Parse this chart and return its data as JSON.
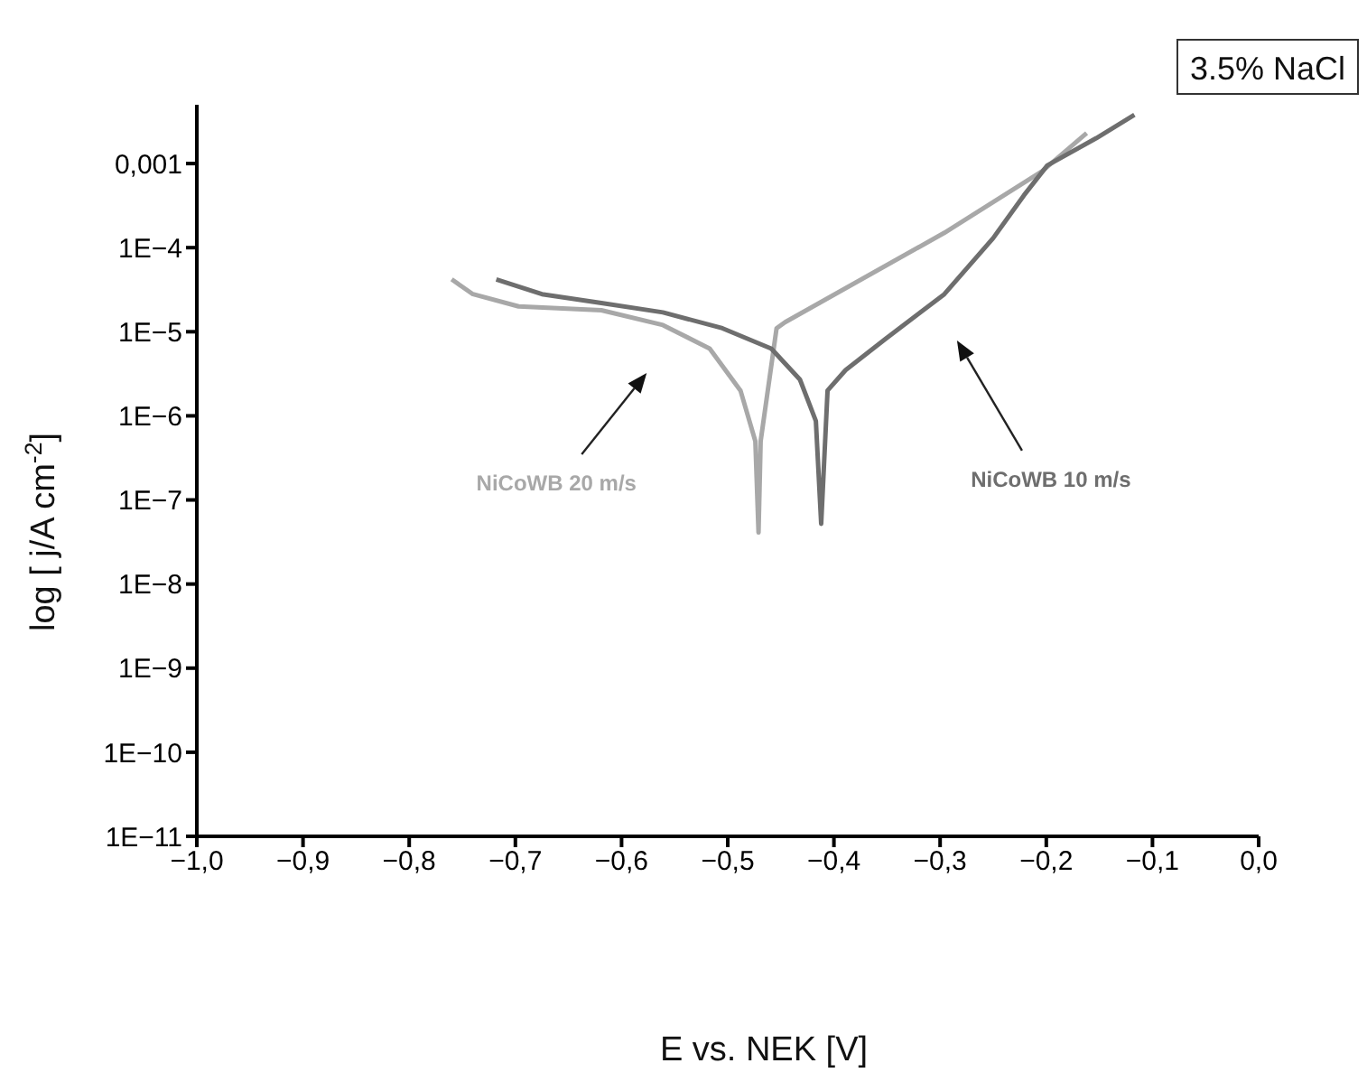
{
  "chart_data": {
    "type": "line",
    "xlabel": "E vs. NEK [V]",
    "ylabel": "log  [ j/A cm$^{-2}$]",
    "log": "y",
    "legend": false,
    "grid": false,
    "marker": "none",
    "line_style": "solid",
    "xlim": [
      -1.0,
      0.0
    ],
    "xticks": [
      {
        "value": -1.0,
        "label": "−1,0"
      },
      {
        "value": -0.9,
        "label": "−0,9"
      },
      {
        "value": -0.8,
        "label": "−0,8"
      },
      {
        "value": -0.7,
        "label": "−0,7"
      },
      {
        "value": -0.6,
        "label": "−0,6"
      },
      {
        "value": -0.5,
        "label": "−0,5"
      },
      {
        "value": -0.4,
        "label": "−0,4"
      },
      {
        "value": -0.3,
        "label": "−0,3"
      },
      {
        "value": -0.2,
        "label": "−0,2"
      },
      {
        "value": -0.1,
        "label": "−0,1"
      },
      {
        "value": 0.0,
        "label": "0,0"
      }
    ],
    "ylim": [
      1e-11,
      0.005
    ],
    "yticks": [
      {
        "value": 1e-11,
        "label": "1E−11"
      },
      {
        "value": 1e-10,
        "label": "1E−10"
      },
      {
        "value": 1e-09,
        "label": "1E−9"
      },
      {
        "value": 1e-08,
        "label": "1E−8"
      },
      {
        "value": 1e-07,
        "label": "1E−7"
      },
      {
        "value": 1e-06,
        "label": "1E−6"
      },
      {
        "value": 1e-05,
        "label": "1E−5"
      },
      {
        "value": 0.0001,
        "label": "1E−4"
      },
      {
        "value": 0.001,
        "label": "0,001"
      }
    ],
    "annotations": [
      "3.5% NaCl"
    ],
    "series": [
      {
        "name": "NiCoWB 20 m/s",
        "color": "#a8a8a8",
        "x": [
          -0.76,
          -0.74,
          -0.697,
          -0.619,
          -0.561,
          -0.517,
          -0.488,
          -0.474,
          -0.471,
          -0.469,
          -0.454,
          -0.446,
          -0.296,
          -0.204,
          -0.162
        ],
        "values": [
          4.2e-05,
          2.8e-05,
          2e-05,
          1.8e-05,
          1.2e-05,
          6.3e-06,
          2e-06,
          5e-07,
          4.1e-08,
          5e-07,
          1.1e-05,
          1.3e-05,
          0.00015,
          0.00081,
          0.0023
        ]
      },
      {
        "name": "NiCoWB 10 m/s",
        "color": "#6e6e6e",
        "x": [
          -0.718,
          -0.675,
          -0.619,
          -0.561,
          -0.505,
          -0.459,
          -0.432,
          -0.417,
          -0.412,
          -0.406,
          -0.389,
          -0.352,
          -0.296,
          -0.25,
          -0.221,
          -0.199,
          -0.153,
          -0.117
        ],
        "values": [
          4.2e-05,
          2.8e-05,
          2.2e-05,
          1.7e-05,
          1.1e-05,
          6.3e-06,
          2.7e-06,
          8.7e-07,
          5.2e-08,
          2e-06,
          3.5e-06,
          8.1e-06,
          2.8e-05,
          0.00013,
          0.00042,
          0.00095,
          0.002,
          0.0038
        ]
      }
    ]
  }
}
